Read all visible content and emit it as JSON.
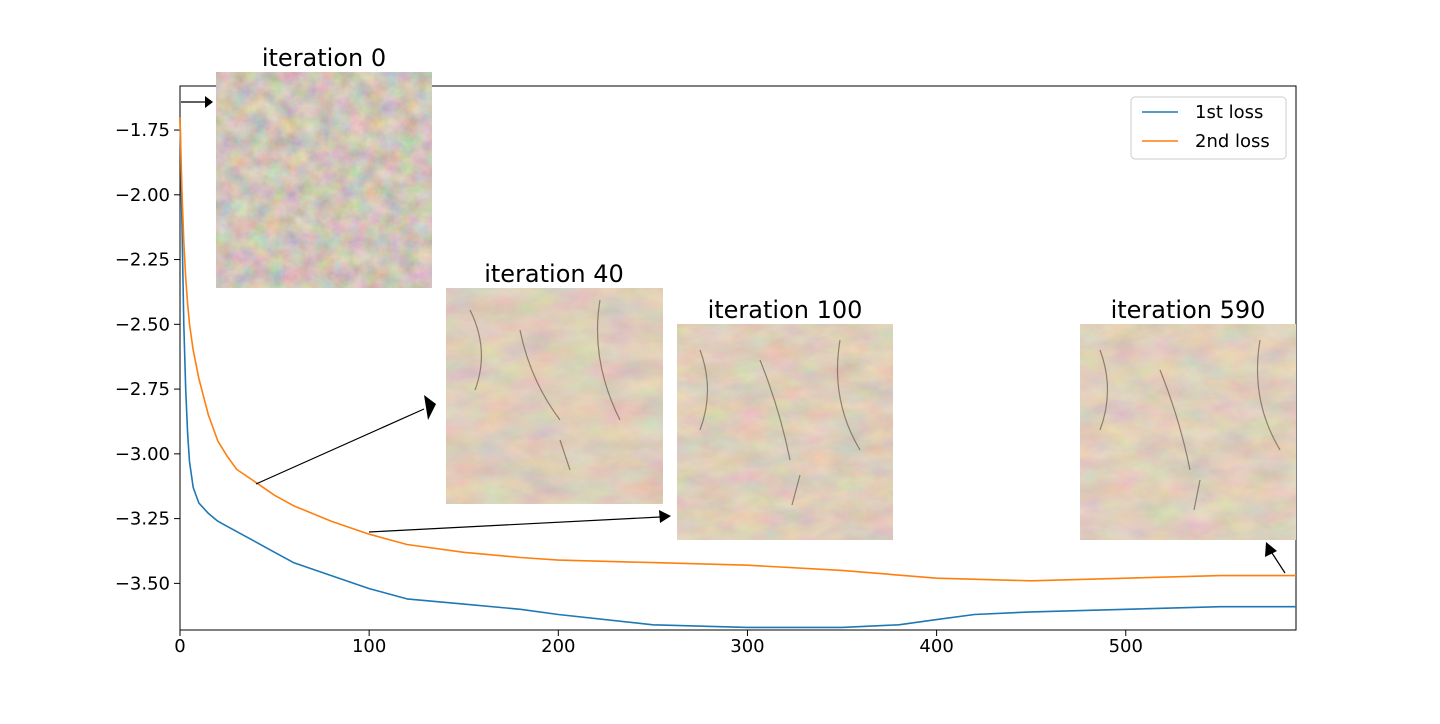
{
  "chart_data": {
    "type": "line",
    "title": "",
    "xlabel": "",
    "ylabel": "",
    "xlim": [
      0,
      590
    ],
    "ylim": [
      -3.68,
      -1.58
    ],
    "xticks": [
      0,
      100,
      200,
      300,
      400,
      500
    ],
    "xtick_labels": [
      "0",
      "100",
      "200",
      "300",
      "400",
      "500"
    ],
    "yticks": [
      -1.75,
      -2.0,
      -2.25,
      -2.5,
      -2.75,
      -3.0,
      -3.25,
      -3.5
    ],
    "ytick_labels": [
      "−1.75",
      "−2.00",
      "−2.25",
      "−2.50",
      "−2.75",
      "−3.00",
      "−3.25",
      "−3.50"
    ],
    "grid": false,
    "legend_position": "top-right",
    "series": [
      {
        "name": "1st loss",
        "color": "#1f77b4",
        "x": [
          0,
          1,
          2,
          3,
          4,
          5,
          7,
          10,
          15,
          20,
          25,
          30,
          40,
          50,
          60,
          80,
          100,
          120,
          150,
          180,
          200,
          250,
          300,
          350,
          380,
          400,
          420,
          450,
          500,
          550,
          570,
          590
        ],
        "y": [
          -1.7,
          -2.1,
          -2.5,
          -2.75,
          -2.92,
          -3.03,
          -3.13,
          -3.19,
          -3.23,
          -3.26,
          -3.28,
          -3.3,
          -3.34,
          -3.38,
          -3.42,
          -3.47,
          -3.52,
          -3.56,
          -3.58,
          -3.6,
          -3.62,
          -3.66,
          -3.67,
          -3.67,
          -3.66,
          -3.64,
          -3.62,
          -3.61,
          -3.6,
          -3.59,
          -3.59,
          -3.59
        ]
      },
      {
        "name": "2nd loss",
        "color": "#ff7f0e",
        "x": [
          0,
          1,
          2,
          3,
          4,
          5,
          7,
          10,
          15,
          20,
          25,
          30,
          40,
          50,
          60,
          80,
          100,
          120,
          150,
          180,
          200,
          250,
          300,
          350,
          400,
          450,
          500,
          550,
          590
        ],
        "y": [
          -1.7,
          -1.98,
          -2.18,
          -2.32,
          -2.42,
          -2.5,
          -2.6,
          -2.71,
          -2.85,
          -2.95,
          -3.01,
          -3.06,
          -3.11,
          -3.16,
          -3.2,
          -3.26,
          -3.31,
          -3.35,
          -3.38,
          -3.4,
          -3.41,
          -3.42,
          -3.43,
          -3.45,
          -3.48,
          -3.49,
          -3.48,
          -3.47,
          -3.47
        ]
      }
    ],
    "annotations": [
      {
        "label": "iteration 0"
      },
      {
        "label": "iteration 40"
      },
      {
        "label": "iteration 100"
      },
      {
        "label": "iteration 590"
      }
    ]
  },
  "colors": {
    "texture_base": "#b8987a",
    "texture_early": "#a89a7e",
    "texture_dark": "#5a4838",
    "arrow": "#000000"
  }
}
